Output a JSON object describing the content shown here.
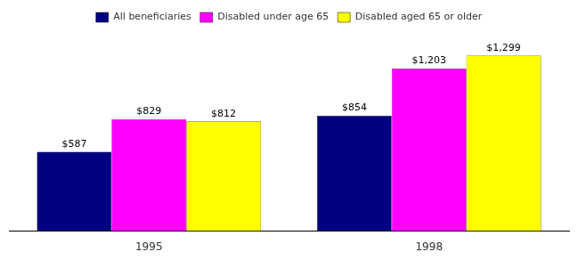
{
  "chart_data": {
    "type": "bar",
    "categories": [
      "1995",
      "1998"
    ],
    "series": [
      {
        "name": "All beneficiaries",
        "color": "#000080",
        "values": [
          587,
          854
        ],
        "value_labels": [
          "$587",
          "$854"
        ]
      },
      {
        "name": "Disabled under age 65",
        "color": "#FF00FF",
        "values": [
          829,
          1203
        ],
        "value_labels": [
          "$829",
          "$1,203"
        ]
      },
      {
        "name": "Disabled aged 65 or older",
        "color": "#FFFF00",
        "values": [
          812,
          1299
        ],
        "value_labels": [
          "$812",
          "$1,299"
        ]
      }
    ],
    "ylim": [
      0,
      1480
    ],
    "data_labels": true,
    "legend": "top",
    "grid": false,
    "tick_labels": "x"
  }
}
